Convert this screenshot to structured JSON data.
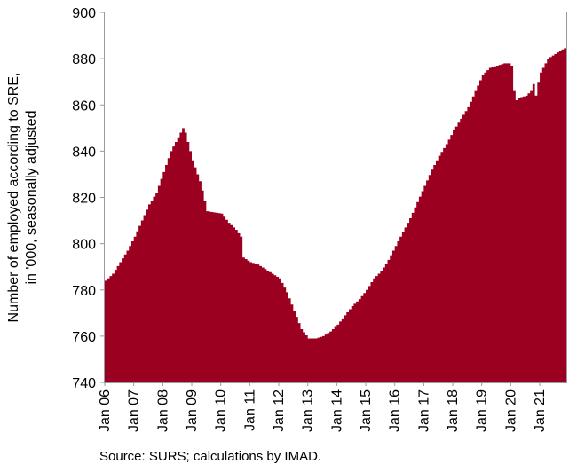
{
  "chart_data": {
    "type": "area",
    "title": "",
    "xlabel": "",
    "ylabel": "Number of employed according to SRE, in '000, seasonally adjusted",
    "ylabel_lines": [
      "Number of employed according to SRE,",
      "in '000, seasonally adjusted"
    ],
    "ylim": [
      740,
      900
    ],
    "yticks": [
      740,
      760,
      780,
      800,
      820,
      840,
      860,
      880,
      900
    ],
    "xlim": [
      2006.0,
      2021.917
    ],
    "x_tick_labels": [
      "Jan 06",
      "Jan 07",
      "Jan 08",
      "Jan 09",
      "Jan 10",
      "Jan 11",
      "Jan 12",
      "Jan 13",
      "Jan 14",
      "Jan 15",
      "Jan 16",
      "Jan 17",
      "Jan 18",
      "Jan 19",
      "Jan 20",
      "Jan 21"
    ],
    "x_tick_values": [
      2006,
      2007,
      2008,
      2009,
      2010,
      2011,
      2012,
      2013,
      2014,
      2015,
      2016,
      2017,
      2018,
      2019,
      2020,
      2021
    ],
    "grid": false,
    "fill_color": "#9b0020",
    "frame_color": "#9a9a9a",
    "series": [
      {
        "name": "",
        "x": [
          2006.0,
          2006.25,
          2006.5,
          2006.75,
          2007.0,
          2007.25,
          2007.5,
          2007.75,
          2008.0,
          2008.25,
          2008.5,
          2008.667,
          2008.75,
          2009.0,
          2009.25,
          2009.333,
          2009.5,
          2010.0,
          2010.25,
          2010.5,
          2010.667,
          2010.75,
          2011.0,
          2011.25,
          2011.5,
          2011.75,
          2012.0,
          2012.25,
          2012.5,
          2012.75,
          2013.0,
          2013.25,
          2013.5,
          2013.75,
          2014.0,
          2014.25,
          2014.5,
          2014.75,
          2015.0,
          2015.25,
          2015.5,
          2015.75,
          2016.0,
          2016.25,
          2016.5,
          2016.75,
          2017.0,
          2017.25,
          2017.5,
          2017.75,
          2018.0,
          2018.25,
          2018.5,
          2018.75,
          2019.0,
          2019.25,
          2019.5,
          2019.75,
          2019.917,
          2020.0,
          2020.083,
          2020.167,
          2020.25,
          2020.5,
          2020.583,
          2020.667,
          2020.75,
          2020.833,
          2020.917,
          2021.0,
          2021.25,
          2021.5,
          2021.75,
          2021.917
        ],
        "values": [
          784,
          787,
          792,
          797,
          803,
          810,
          817,
          822,
          831,
          840,
          846,
          850,
          848,
          836,
          827,
          823,
          814,
          813,
          809,
          806,
          803,
          794,
          792,
          791,
          789,
          787,
          785,
          779,
          771,
          763,
          759,
          759,
          760,
          762,
          765,
          769,
          773,
          776,
          780,
          785,
          788,
          793,
          799,
          805,
          811,
          818,
          825,
          832,
          838,
          843,
          849,
          854,
          859,
          866,
          873,
          876,
          877,
          878,
          878,
          877,
          866,
          862,
          863,
          864,
          865,
          866,
          869,
          864,
          870,
          874,
          880,
          882,
          884,
          885
        ]
      }
    ]
  }
}
